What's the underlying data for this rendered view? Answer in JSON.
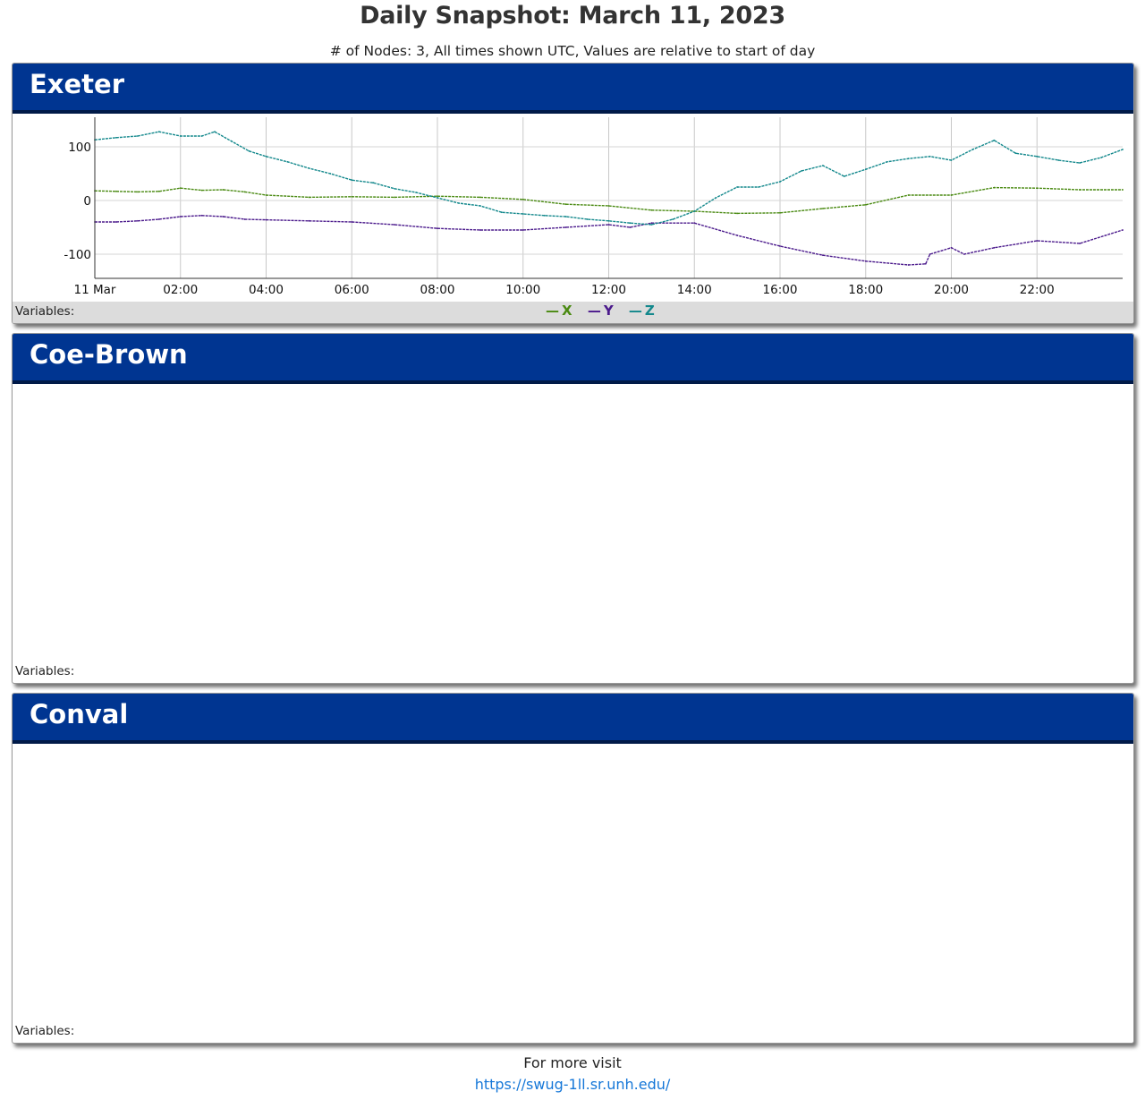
{
  "page": {
    "title": "Daily Snapshot: March 11, 2023",
    "subtitle": "# of Nodes: 3, All times shown UTC, Values are relative to start of day"
  },
  "colors": {
    "header_bg": "#003591",
    "x": "#4a8a12",
    "y": "#4b1a8c",
    "z": "#13888c",
    "link": "#1577d8"
  },
  "panels": [
    {
      "title": "Exeter",
      "variables_label": "Variables:"
    },
    {
      "title": "Coe-Brown",
      "variables_label": "Variables:"
    },
    {
      "title": "Conval",
      "variables_label": "Variables:"
    }
  ],
  "legend": [
    {
      "marker": "—",
      "name": "X"
    },
    {
      "marker": "—",
      "name": "Y"
    },
    {
      "marker": "—",
      "name": "Z"
    }
  ],
  "chart_data": {
    "type": "line",
    "title": "",
    "xlabel": "",
    "ylabel": "",
    "x_unit": "hour UTC",
    "xlim": [
      0,
      24
    ],
    "ylim": [
      -145,
      155
    ],
    "x_ticks": [
      0,
      2,
      4,
      6,
      8,
      10,
      12,
      14,
      16,
      18,
      20,
      22
    ],
    "x_tick_labels": [
      "11 Mar",
      "02:00",
      "04:00",
      "06:00",
      "08:00",
      "10:00",
      "12:00",
      "14:00",
      "16:00",
      "18:00",
      "20:00",
      "22:00"
    ],
    "y_ticks": [
      100,
      0,
      -100
    ],
    "y_tick_labels": [
      "100",
      "0",
      "-100"
    ],
    "grid": true,
    "legend_position": "bottom-center",
    "series": [
      {
        "name": "X",
        "color": "#4a8a12",
        "x": [
          0,
          0.5,
          1,
          1.5,
          2,
          2.5,
          3,
          3.5,
          4,
          5,
          6,
          7,
          8,
          9,
          10,
          11,
          12,
          13,
          14,
          15,
          16,
          17,
          18,
          19,
          20,
          21,
          22,
          23,
          24
        ],
        "y": [
          18,
          17,
          16,
          17,
          23,
          19,
          20,
          16,
          10,
          6,
          7,
          6,
          8,
          6,
          2,
          -7,
          -10,
          -18,
          -20,
          -24,
          -23,
          -15,
          -8,
          10,
          10,
          24,
          23,
          20,
          20
        ]
      },
      {
        "name": "Y",
        "color": "#4b1a8c",
        "x": [
          0,
          0.5,
          1,
          1.5,
          2,
          2.5,
          3,
          3.5,
          4,
          5,
          6,
          7,
          8,
          9,
          10,
          11,
          12,
          12.5,
          13,
          14,
          15,
          16,
          17,
          18,
          19,
          19.4,
          19.5,
          20,
          20.3,
          21,
          22,
          23,
          24
        ],
        "y": [
          -40,
          -40,
          -38,
          -35,
          -30,
          -28,
          -30,
          -35,
          -36,
          -38,
          -40,
          -45,
          -52,
          -55,
          -55,
          -50,
          -45,
          -50,
          -42,
          -42,
          -65,
          -85,
          -102,
          -113,
          -120,
          -118,
          -100,
          -88,
          -100,
          -88,
          -75,
          -80,
          -55
        ]
      },
      {
        "name": "Z",
        "color": "#13888c",
        "x": [
          0,
          0.5,
          1,
          1.5,
          2,
          2.5,
          2.8,
          3.2,
          3.6,
          4,
          4.5,
          5,
          5.5,
          6,
          6.5,
          7,
          7.5,
          8,
          8.5,
          9,
          9.5,
          10,
          10.5,
          11,
          11.5,
          12,
          12.5,
          13,
          13.5,
          14,
          14.5,
          15,
          15.5,
          16,
          16.5,
          17,
          17.5,
          18,
          18.5,
          19,
          19.5,
          20,
          20.5,
          21,
          21.5,
          22,
          22.5,
          23,
          23.5,
          24
        ],
        "y": [
          113,
          117,
          120,
          128,
          120,
          120,
          128,
          110,
          92,
          82,
          72,
          60,
          50,
          38,
          33,
          22,
          15,
          5,
          -5,
          -10,
          -22,
          -25,
          -28,
          -30,
          -35,
          -38,
          -42,
          -45,
          -35,
          -20,
          5,
          25,
          25,
          35,
          55,
          65,
          45,
          58,
          72,
          78,
          82,
          75,
          95,
          112,
          88,
          82,
          75,
          70,
          80,
          95
        ]
      }
    ]
  },
  "footer": {
    "text": "For more visit",
    "link": "https://swug-1ll.sr.unh.edu/"
  }
}
